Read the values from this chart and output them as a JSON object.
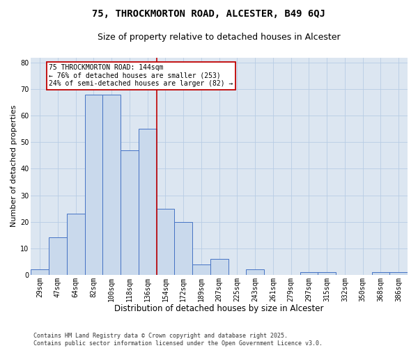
{
  "title1": "75, THROCKMORTON ROAD, ALCESTER, B49 6QJ",
  "title2": "Size of property relative to detached houses in Alcester",
  "xlabel": "Distribution of detached houses by size in Alcester",
  "ylabel": "Number of detached properties",
  "categories": [
    "29sqm",
    "47sqm",
    "64sqm",
    "82sqm",
    "100sqm",
    "118sqm",
    "136sqm",
    "154sqm",
    "172sqm",
    "189sqm",
    "207sqm",
    "225sqm",
    "243sqm",
    "261sqm",
    "279sqm",
    "297sqm",
    "315sqm",
    "332sqm",
    "350sqm",
    "368sqm",
    "386sqm"
  ],
  "values": [
    2,
    14,
    23,
    68,
    68,
    47,
    55,
    25,
    20,
    4,
    6,
    0,
    2,
    0,
    0,
    1,
    1,
    0,
    0,
    1,
    1
  ],
  "bar_color": "#c9d9ec",
  "bar_edge_color": "#4472c4",
  "grid_color": "#b8cce4",
  "background_color": "#dce6f1",
  "vline_color": "#c00000",
  "annotation_text": "75 THROCKMORTON ROAD: 144sqm\n← 76% of detached houses are smaller (253)\n24% of semi-detached houses are larger (82) →",
  "annotation_box_color": "#c00000",
  "ylim": [
    0,
    82
  ],
  "yticks": [
    0,
    10,
    20,
    30,
    40,
    50,
    60,
    70,
    80
  ],
  "footer": "Contains HM Land Registry data © Crown copyright and database right 2025.\nContains public sector information licensed under the Open Government Licence v3.0.",
  "title1_fontsize": 10,
  "title2_fontsize": 9,
  "xlabel_fontsize": 8.5,
  "ylabel_fontsize": 8,
  "tick_fontsize": 7,
  "footer_fontsize": 6,
  "ann_fontsize": 7
}
